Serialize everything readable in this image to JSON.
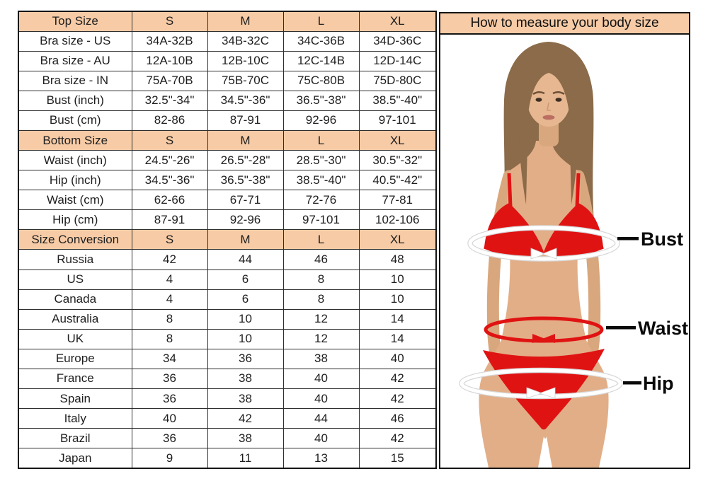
{
  "table": {
    "sections": [
      {
        "header": {
          "label": "Top Size",
          "cols": [
            "S",
            "M",
            "L",
            "XL"
          ]
        },
        "rows": [
          {
            "label": "Bra size - US",
            "values": [
              "34A-32B",
              "34B-32C",
              "34C-36B",
              "34D-36C"
            ]
          },
          {
            "label": "Bra size - AU",
            "values": [
              "12A-10B",
              "12B-10C",
              "12C-14B",
              "12D-14C"
            ]
          },
          {
            "label": "Bra size - IN",
            "values": [
              "75A-70B",
              "75B-70C",
              "75C-80B",
              "75D-80C"
            ]
          },
          {
            "label": "Bust (inch)",
            "values": [
              "32.5\"-34\"",
              "34.5\"-36\"",
              "36.5\"-38\"",
              "38.5\"-40\""
            ]
          },
          {
            "label": "Bust (cm)",
            "values": [
              "82-86",
              "87-91",
              "92-96",
              "97-101"
            ]
          }
        ]
      },
      {
        "header": {
          "label": "Bottom Size",
          "cols": [
            "S",
            "M",
            "L",
            "XL"
          ]
        },
        "rows": [
          {
            "label": "Waist (inch)",
            "values": [
              "24.5\"-26\"",
              "26.5\"-28\"",
              "28.5\"-30\"",
              "30.5\"-32\""
            ]
          },
          {
            "label": "Hip (inch)",
            "values": [
              "34.5\"-36\"",
              "36.5\"-38\"",
              "38.5\"-40\"",
              "40.5\"-42\""
            ]
          },
          {
            "label": "Waist (cm)",
            "values": [
              "62-66",
              "67-71",
              "72-76",
              "77-81"
            ]
          },
          {
            "label": "Hip (cm)",
            "values": [
              "87-91",
              "92-96",
              "97-101",
              "102-106"
            ]
          }
        ]
      },
      {
        "header": {
          "label": "Size Conversion",
          "cols": [
            "S",
            "M",
            "L",
            "XL"
          ]
        },
        "rows": [
          {
            "label": "Russia",
            "values": [
              "42",
              "44",
              "46",
              "48"
            ]
          },
          {
            "label": "US",
            "values": [
              "4",
              "6",
              "8",
              "10"
            ]
          },
          {
            "label": "Canada",
            "values": [
              "4",
              "6",
              "8",
              "10"
            ]
          },
          {
            "label": "Australia",
            "values": [
              "8",
              "10",
              "12",
              "14"
            ]
          },
          {
            "label": "UK",
            "values": [
              "8",
              "10",
              "12",
              "14"
            ]
          },
          {
            "label": "Europe",
            "values": [
              "34",
              "36",
              "38",
              "40"
            ]
          },
          {
            "label": "France",
            "values": [
              "36",
              "38",
              "40",
              "42"
            ]
          },
          {
            "label": "Spain",
            "values": [
              "36",
              "38",
              "40",
              "42"
            ]
          },
          {
            "label": "Italy",
            "values": [
              "40",
              "42",
              "44",
              "46"
            ]
          },
          {
            "label": "Brazil",
            "values": [
              "36",
              "38",
              "40",
              "42"
            ]
          },
          {
            "label": "Japan",
            "values": [
              "9",
              "11",
              "13",
              "15"
            ]
          }
        ]
      }
    ]
  },
  "guide": {
    "title": "How to measure your body size",
    "labels": {
      "bust": "Bust",
      "waist": "Waist",
      "hip": "Hip"
    }
  },
  "colors": {
    "header_bg": "#f6cba6",
    "grid_border": "#2e2e2e",
    "outer_border": "#151515",
    "text": "#1e1e1e",
    "bikini_red": "#e01313",
    "skin": "#e2ae87",
    "hair": "#8b6b49",
    "measure_white": "#ffffff",
    "label_black": "#0a0a0a"
  }
}
